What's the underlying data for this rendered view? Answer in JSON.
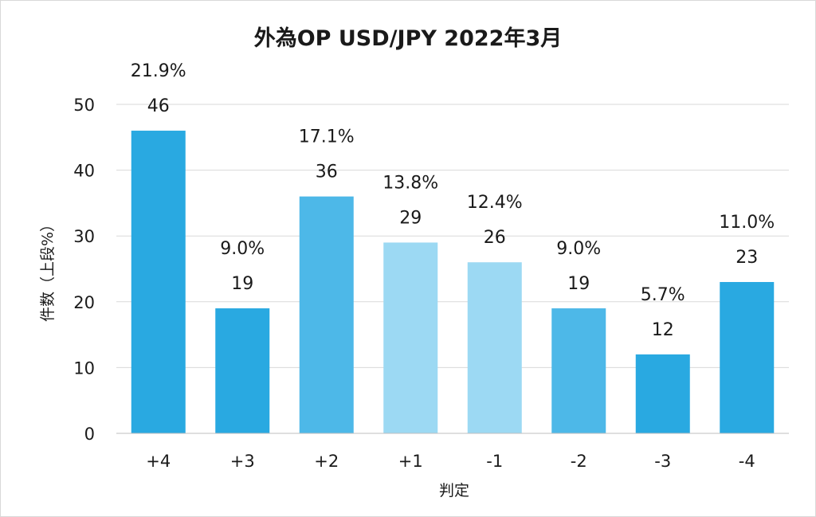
{
  "chart_data": {
    "type": "bar",
    "title": "外為OP USD/JPY 2022年3月",
    "xlabel": "判定",
    "ylabel": "件数（上段%）",
    "categories": [
      "+4",
      "+3",
      "+2",
      "+1",
      "-1",
      "-2",
      "-3",
      "-4"
    ],
    "values": [
      46,
      19,
      36,
      29,
      26,
      19,
      12,
      23
    ],
    "percent_labels": [
      "21.9%",
      "9.0%",
      "17.1%",
      "13.8%",
      "12.4%",
      "9.0%",
      "5.7%",
      "11.0%"
    ],
    "ylim": [
      0,
      50
    ],
    "yticks": [
      0,
      10,
      20,
      30,
      40,
      50
    ],
    "grid": true,
    "legend": "none",
    "bar_colors": [
      "#29a9e1",
      "#29a9e1",
      "#4db8e8",
      "#9cd9f3",
      "#9cd9f3",
      "#4db8e8",
      "#29a9e1",
      "#29a9e1"
    ]
  }
}
